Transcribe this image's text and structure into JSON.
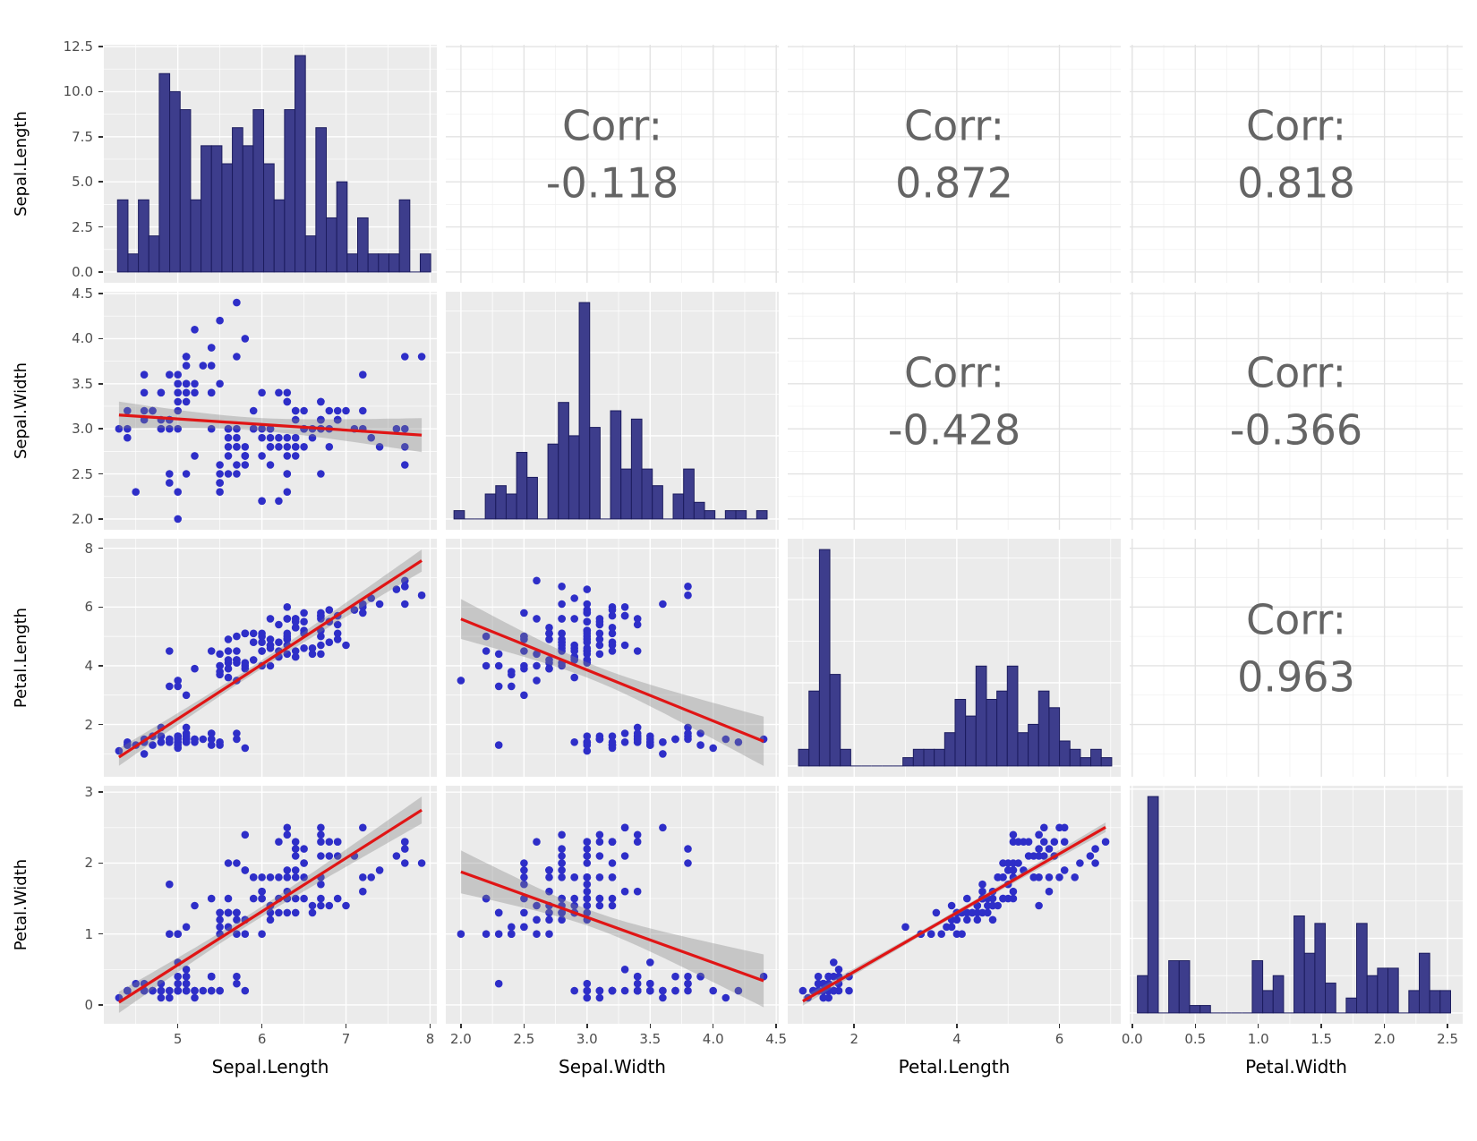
{
  "chart_data": {
    "type": "scatterplot-matrix",
    "variables": [
      "Sepal.Length",
      "Sepal.Width",
      "Petal.Length",
      "Petal.Width"
    ],
    "panel_types": {
      "diagonal": "histogram",
      "lower": "scatter with linear fit and 95% confidence ribbon",
      "upper": "correlation text"
    },
    "histogram_bins": 30,
    "smoother": "lm",
    "ci_level": 0.95,
    "grid": "on",
    "legend": "none",
    "upper_cells": [
      {
        "row": 0,
        "col": 1,
        "label": "Corr:",
        "value": "-0.118"
      },
      {
        "row": 0,
        "col": 2,
        "label": "Corr:",
        "value": "0.872"
      },
      {
        "row": 0,
        "col": 3,
        "label": "Corr:",
        "value": "0.818"
      },
      {
        "row": 1,
        "col": 2,
        "label": "Corr:",
        "value": "-0.428"
      },
      {
        "row": 1,
        "col": 3,
        "label": "Corr:",
        "value": "-0.366"
      },
      {
        "row": 2,
        "col": 3,
        "label": "Corr:",
        "value": "0.963"
      }
    ],
    "axes": {
      "rows": [
        {
          "variable": "Sepal.Length",
          "values": [
            0,
            2.5,
            5,
            7.5,
            10,
            12.5
          ],
          "labels": [
            "0.0",
            "2.5",
            "5.0",
            "7.5",
            "10.0",
            "12.5"
          ]
        },
        {
          "variable": "Sepal.Width",
          "values": [
            2,
            2.5,
            3,
            3.5,
            4,
            4.5
          ],
          "labels": [
            "2.0",
            "2.5",
            "3.0",
            "3.5",
            "4.0",
            "4.5"
          ]
        },
        {
          "variable": "Petal.Length",
          "values": [
            2,
            4,
            6,
            8
          ],
          "labels": [
            "2",
            "4",
            "6",
            "8"
          ]
        },
        {
          "variable": "Petal.Width",
          "values": [
            0,
            1,
            2,
            3
          ],
          "labels": [
            "0",
            "1",
            "2",
            "3"
          ]
        }
      ],
      "cols": [
        {
          "variable": "Sepal.Length",
          "values": [
            5,
            6,
            7,
            8
          ],
          "labels": [
            "5",
            "6",
            "7",
            "8"
          ]
        },
        {
          "variable": "Sepal.Width",
          "values": [
            2,
            2.5,
            3,
            3.5,
            4,
            4.5
          ],
          "labels": [
            "2.0",
            "2.5",
            "3.0",
            "3.5",
            "4.0",
            "4.5"
          ]
        },
        {
          "variable": "Petal.Length",
          "values": [
            2,
            4,
            6
          ],
          "labels": [
            "2",
            "4",
            "6"
          ]
        },
        {
          "variable": "Petal.Width",
          "values": [
            0,
            0.5,
            1,
            1.5,
            2,
            2.5
          ],
          "labels": [
            "0.0",
            "0.5",
            "1.0",
            "1.5",
            "2.0",
            "2.5"
          ]
        }
      ]
    },
    "colors": {
      "panel_bg": "#EBEBEB",
      "grid_major": "#FFFFFF",
      "corr_grid_major": "#E3E3E3",
      "corr_grid_minor": "#F0F0F0",
      "point": "#2E2EC8",
      "hist_fill": "#3D3D8C",
      "hist_stroke": "#1C1C5E",
      "smooth_line": "#E01515",
      "ribbon": "#808080",
      "corr_text": "#646464",
      "tick_text": "#4D4D4D",
      "label_text": "#000000"
    },
    "points": {
      "Sepal.Length": [
        5.1,
        4.9,
        4.7,
        4.6,
        5.0,
        5.4,
        4.6,
        5.0,
        4.4,
        4.9,
        5.4,
        4.8,
        4.8,
        4.3,
        5.8,
        5.7,
        5.4,
        5.1,
        5.7,
        5.1,
        5.4,
        5.1,
        4.6,
        5.1,
        4.8,
        5.0,
        5.0,
        5.2,
        5.2,
        4.7,
        4.8,
        5.4,
        5.2,
        5.5,
        4.9,
        5.0,
        5.5,
        4.9,
        4.4,
        5.1,
        5.0,
        4.5,
        4.4,
        5.0,
        5.1,
        4.8,
        5.1,
        4.6,
        5.3,
        5.0,
        7.0,
        6.4,
        6.9,
        5.5,
        6.5,
        5.7,
        6.3,
        4.9,
        6.6,
        5.2,
        5.0,
        5.9,
        6.0,
        6.1,
        5.6,
        6.7,
        5.6,
        5.8,
        6.2,
        5.6,
        5.9,
        6.1,
        6.3,
        6.1,
        6.4,
        6.6,
        6.8,
        6.7,
        6.0,
        5.7,
        5.5,
        5.5,
        5.8,
        6.0,
        5.4,
        6.0,
        6.7,
        6.3,
        5.6,
        5.5,
        5.5,
        6.1,
        5.8,
        5.0,
        5.6,
        5.7,
        5.7,
        6.2,
        5.1,
        5.7,
        6.3,
        5.8,
        7.1,
        6.3,
        6.5,
        7.6,
        4.9,
        7.3,
        6.7,
        7.2,
        6.5,
        6.4,
        6.8,
        5.7,
        5.8,
        6.4,
        6.5,
        7.7,
        7.7,
        6.0,
        6.9,
        5.6,
        7.7,
        6.3,
        6.7,
        7.2,
        6.2,
        6.1,
        6.4,
        7.2,
        7.4,
        7.9,
        6.4,
        6.3,
        6.1,
        7.7,
        6.3,
        6.4,
        6.0,
        6.9,
        6.7,
        6.9,
        5.8,
        6.8,
        6.7,
        6.7,
        6.3,
        6.5,
        6.2,
        5.9
      ],
      "Sepal.Width": [
        3.5,
        3.0,
        3.2,
        3.1,
        3.6,
        3.9,
        3.4,
        3.4,
        2.9,
        3.1,
        3.7,
        3.4,
        3.0,
        3.0,
        4.0,
        4.4,
        3.9,
        3.5,
        3.8,
        3.8,
        3.4,
        3.7,
        3.6,
        3.3,
        3.4,
        3.0,
        3.4,
        3.5,
        3.4,
        3.2,
        3.1,
        3.4,
        4.1,
        4.2,
        3.1,
        3.2,
        3.5,
        3.6,
        3.0,
        3.4,
        3.5,
        2.3,
        3.2,
        3.5,
        3.8,
        3.0,
        3.8,
        3.2,
        3.7,
        3.3,
        3.2,
        3.2,
        3.1,
        2.3,
        2.8,
        2.8,
        3.3,
        2.4,
        2.9,
        2.7,
        2.0,
        3.0,
        2.2,
        2.9,
        2.9,
        3.1,
        3.0,
        2.7,
        2.2,
        2.5,
        3.2,
        2.8,
        2.5,
        2.8,
        2.9,
        3.0,
        2.8,
        3.0,
        2.9,
        2.6,
        2.4,
        2.4,
        2.7,
        2.7,
        3.0,
        3.4,
        3.1,
        2.3,
        3.0,
        2.5,
        2.6,
        3.0,
        2.6,
        2.3,
        2.7,
        3.0,
        2.9,
        2.9,
        2.5,
        2.8,
        3.3,
        2.7,
        3.0,
        2.9,
        3.0,
        3.0,
        2.5,
        2.9,
        2.5,
        3.6,
        3.2,
        2.7,
        3.0,
        2.5,
        2.8,
        3.2,
        3.0,
        3.8,
        2.6,
        2.2,
        3.2,
        2.8,
        2.8,
        2.7,
        3.3,
        3.2,
        2.8,
        3.0,
        2.8,
        3.0,
        2.8,
        3.8,
        2.8,
        2.8,
        2.6,
        3.0,
        3.4,
        3.1,
        3.0,
        3.1,
        3.1,
        3.1,
        2.7,
        3.2,
        3.3,
        3.0,
        2.5,
        3.0,
        3.4,
        3.0
      ],
      "Petal.Length": [
        1.4,
        1.4,
        1.3,
        1.5,
        1.4,
        1.7,
        1.4,
        1.5,
        1.4,
        1.5,
        1.5,
        1.6,
        1.4,
        1.1,
        1.2,
        1.5,
        1.3,
        1.4,
        1.7,
        1.5,
        1.7,
        1.5,
        1.0,
        1.7,
        1.9,
        1.6,
        1.6,
        1.5,
        1.4,
        1.6,
        1.6,
        1.5,
        1.5,
        1.4,
        1.5,
        1.2,
        1.3,
        1.4,
        1.3,
        1.5,
        1.3,
        1.3,
        1.3,
        1.6,
        1.9,
        1.4,
        1.6,
        1.4,
        1.5,
        1.4,
        4.7,
        4.5,
        4.9,
        4.0,
        4.6,
        4.5,
        4.7,
        3.3,
        4.6,
        3.9,
        3.5,
        4.2,
        4.0,
        4.7,
        3.6,
        4.4,
        4.5,
        4.1,
        4.5,
        3.9,
        4.8,
        4.0,
        4.9,
        4.7,
        4.3,
        4.4,
        4.8,
        5.0,
        4.5,
        3.5,
        3.8,
        3.7,
        3.9,
        5.1,
        4.5,
        4.5,
        4.7,
        4.4,
        4.1,
        4.0,
        4.4,
        4.6,
        4.0,
        3.3,
        4.2,
        4.2,
        4.2,
        4.3,
        3.0,
        4.1,
        6.0,
        5.1,
        5.9,
        5.6,
        5.8,
        6.6,
        4.5,
        6.3,
        5.8,
        6.1,
        5.1,
        5.3,
        5.5,
        5.0,
        5.1,
        5.3,
        5.5,
        6.7,
        6.9,
        5.0,
        5.7,
        4.9,
        6.7,
        4.9,
        5.7,
        6.0,
        4.8,
        4.9,
        5.6,
        5.8,
        6.1,
        6.4,
        5.6,
        5.1,
        5.6,
        6.1,
        5.6,
        5.5,
        4.8,
        5.4,
        5.6,
        5.1,
        5.1,
        5.9,
        5.7,
        5.2,
        5.0,
        5.2,
        5.4,
        5.1
      ],
      "Petal.Width": [
        0.2,
        0.2,
        0.2,
        0.2,
        0.2,
        0.4,
        0.3,
        0.2,
        0.2,
        0.1,
        0.2,
        0.2,
        0.1,
        0.1,
        0.2,
        0.4,
        0.4,
        0.3,
        0.3,
        0.3,
        0.2,
        0.4,
        0.2,
        0.5,
        0.2,
        0.2,
        0.4,
        0.2,
        0.2,
        0.2,
        0.2,
        0.4,
        0.1,
        0.2,
        0.2,
        0.2,
        0.2,
        0.1,
        0.2,
        0.2,
        0.3,
        0.3,
        0.2,
        0.6,
        0.4,
        0.3,
        0.2,
        0.2,
        0.2,
        0.2,
        1.4,
        1.5,
        1.5,
        1.3,
        1.5,
        1.3,
        1.6,
        1.0,
        1.3,
        1.4,
        1.0,
        1.5,
        1.0,
        1.4,
        1.3,
        1.4,
        1.5,
        1.0,
        1.5,
        1.1,
        1.8,
        1.3,
        1.5,
        1.2,
        1.3,
        1.4,
        1.4,
        1.7,
        1.5,
        1.0,
        1.1,
        1.0,
        1.2,
        1.6,
        1.5,
        1.6,
        1.5,
        1.3,
        1.3,
        1.3,
        1.2,
        1.4,
        1.2,
        1.0,
        1.3,
        1.2,
        1.3,
        1.3,
        1.1,
        1.3,
        2.5,
        1.9,
        2.1,
        1.8,
        2.2,
        2.1,
        1.7,
        1.8,
        1.8,
        2.5,
        2.0,
        1.9,
        2.1,
        2.0,
        2.4,
        2.3,
        1.8,
        2.2,
        2.3,
        1.5,
        2.3,
        2.0,
        2.0,
        1.8,
        2.1,
        1.8,
        1.8,
        1.8,
        2.1,
        1.6,
        1.9,
        2.0,
        2.2,
        1.5,
        1.4,
        2.3,
        2.4,
        1.8,
        1.8,
        2.1,
        2.4,
        2.3,
        1.9,
        2.3,
        2.5,
        2.3,
        1.9,
        2.0,
        2.3,
        1.8
      ]
    }
  }
}
